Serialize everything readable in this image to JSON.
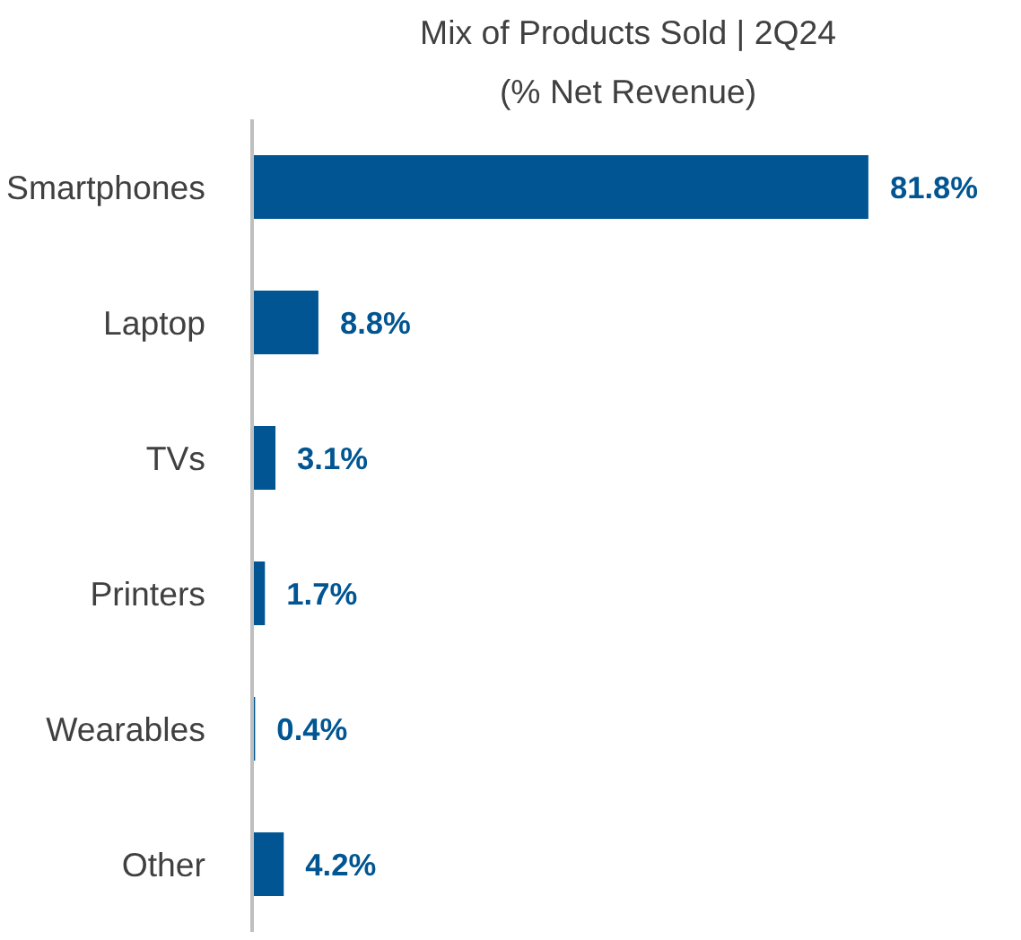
{
  "chart_data": {
    "type": "bar",
    "orientation": "horizontal",
    "title": "Mix of Products Sold | 2Q24",
    "subtitle": "(% Net Revenue)",
    "categories": [
      "Smartphones",
      "Laptop",
      "TVs",
      "Printers",
      "Wearables",
      "Other"
    ],
    "values": [
      81.8,
      8.8,
      3.1,
      1.7,
      0.4,
      4.2
    ],
    "value_labels": [
      "81.8%",
      "8.8%",
      "3.1%",
      "1.7%",
      "0.4%",
      "4.2%"
    ],
    "color": "#005592",
    "grid": false,
    "tick_labels": "y"
  }
}
